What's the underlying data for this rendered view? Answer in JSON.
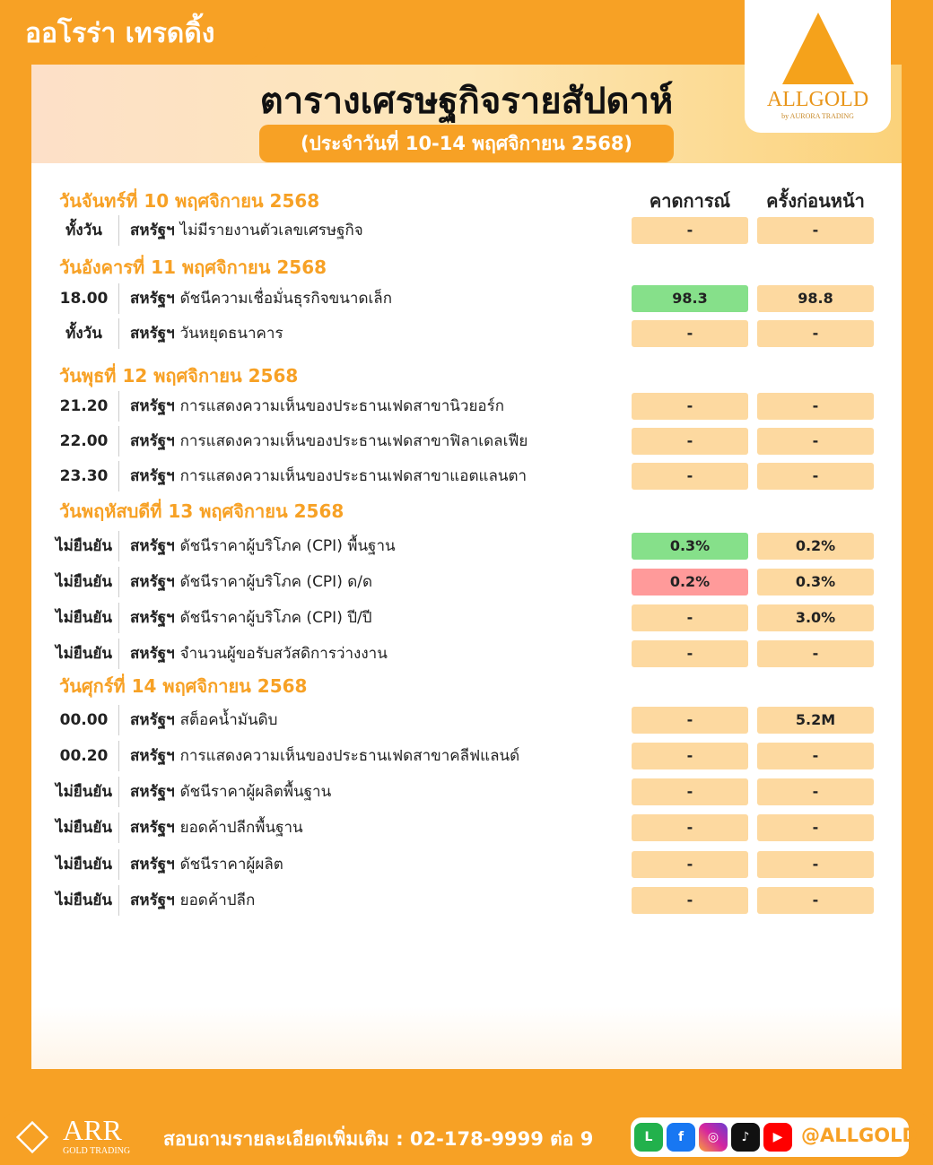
{
  "brand": "ออโรร่า เทรดดิ้ง",
  "title": "ตารางเศรษฐกิจรายสัปดาห์",
  "subtitle": "(ประจำวันที่ 10-14 พฤศจิกายน 2568)",
  "logo": {
    "name": "ALLGOLD",
    "by": "by AURORA TRADING"
  },
  "columns": {
    "forecast": "คาดการณ์",
    "previous": "ครั้งก่อนหน้า"
  },
  "colors": {
    "accent": "#f7a125",
    "cell": "#fdd9a0",
    "better": "#86e08a",
    "worse": "#ff9a9a"
  },
  "days": [
    {
      "label": "วันจันทร์ที่ 10 พฤศจิกายน 2568",
      "rows": [
        {
          "time": "ทั้งวัน",
          "country": "สหรัฐฯ",
          "event": "ไม่มีรายงานตัวเลขเศรษฐกิจ",
          "forecast": "-",
          "previous": "-"
        }
      ]
    },
    {
      "label": "วันอังคารที่ 11 พฤศจิกายน 2568",
      "rows": [
        {
          "time": "18.00",
          "country": "สหรัฐฯ",
          "event": "ดัชนีความเชื่อมั่นธุรกิจขนาดเล็ก",
          "forecast": "98.3",
          "previous": "98.8",
          "status": "better"
        },
        {
          "time": "ทั้งวัน",
          "country": "สหรัฐฯ",
          "event": "วันหยุดธนาคาร",
          "forecast": "-",
          "previous": "-"
        }
      ]
    },
    {
      "label": "วันพุธที่ 12 พฤศจิกายน 2568",
      "rows": [
        {
          "time": "21.20",
          "country": "สหรัฐฯ",
          "event": "การแสดงความเห็นของประธานเฟดสาขานิวยอร์ก",
          "forecast": "-",
          "previous": "-"
        },
        {
          "time": "22.00",
          "country": "สหรัฐฯ",
          "event": "การแสดงความเห็นของประธานเฟดสาขาฟิลาเดลเฟีย",
          "forecast": "-",
          "previous": "-"
        },
        {
          "time": "23.30",
          "country": "สหรัฐฯ",
          "event": "การแสดงความเห็นของประธานเฟดสาขาแอตแลนตา",
          "forecast": "-",
          "previous": "-"
        }
      ]
    },
    {
      "label": "วันพฤหัสบดีที่ 13 พฤศจิกายน 2568",
      "rows": [
        {
          "time": "ไม่ยืนยัน",
          "country": "สหรัฐฯ",
          "event": "ดัชนีราคาผู้บริโภค (CPI) พื้นฐาน",
          "forecast": "0.3%",
          "previous": "0.2%",
          "status": "better"
        },
        {
          "time": "ไม่ยืนยัน",
          "country": "สหรัฐฯ",
          "event": "ดัชนีราคาผู้บริโภค (CPI) ด/ด",
          "forecast": "0.2%",
          "previous": "0.3%",
          "status": "worse"
        },
        {
          "time": "ไม่ยืนยัน",
          "country": "สหรัฐฯ",
          "event": "ดัชนีราคาผู้บริโภค (CPI) ปี/ปี",
          "forecast": "-",
          "previous": "3.0%"
        },
        {
          "time": "ไม่ยืนยัน",
          "country": "สหรัฐฯ",
          "event": "จำนวนผู้ขอรับสวัสดิการว่างงาน",
          "forecast": "-",
          "previous": "-"
        }
      ]
    },
    {
      "label": "วันศุกร์ที่ 14 พฤศจิกายน 2568",
      "rows": [
        {
          "time": "00.00",
          "country": "สหรัฐฯ",
          "event": "สต็อคน้ำมันดิบ",
          "forecast": "-",
          "previous": "5.2M"
        },
        {
          "time": "00.20",
          "country": "สหรัฐฯ",
          "event": "การแสดงความเห็นของประธานเฟดสาขาคลีฟแลนด์",
          "forecast": "-",
          "previous": "-"
        },
        {
          "time": "ไม่ยืนยัน",
          "country": "สหรัฐฯ",
          "event": "ดัชนีราคาผู้ผลิตพื้นฐาน",
          "forecast": "-",
          "previous": "-"
        },
        {
          "time": "ไม่ยืนยัน",
          "country": "สหรัฐฯ",
          "event": "ยอดค้าปลีกพื้นฐาน",
          "forecast": "-",
          "previous": "-"
        },
        {
          "time": "ไม่ยืนยัน",
          "country": "สหรัฐฯ",
          "event": "ดัชนีราคาผู้ผลิต",
          "forecast": "-",
          "previous": "-"
        },
        {
          "time": "ไม่ยืนยัน",
          "country": "สหรัฐฯ",
          "event": "ยอดค้าปลีก",
          "forecast": "-",
          "previous": "-"
        }
      ]
    }
  ],
  "footer": {
    "company": "ARR",
    "company_sub": "GOLD TRADING",
    "contact": "สอบถามรายละเอียดเพิ่มเติม : 02-178-9999 ต่อ 9",
    "social": [
      "line-icon",
      "facebook-icon",
      "instagram-icon",
      "tiktok-icon",
      "youtube-icon"
    ],
    "handle": "@ALLGOLD"
  }
}
